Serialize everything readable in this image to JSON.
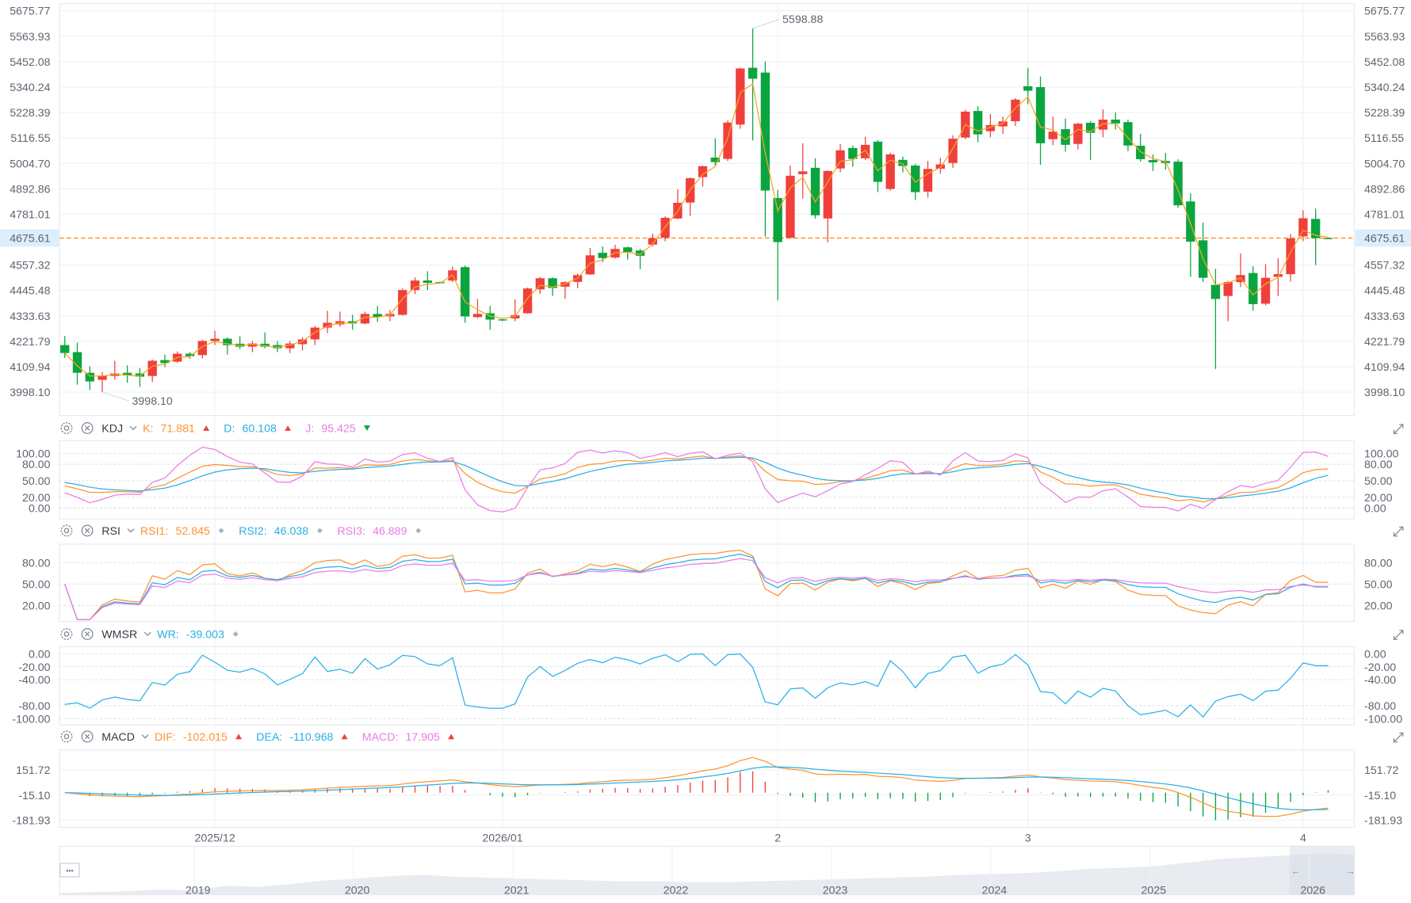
{
  "colors": {
    "up": "#f0403c",
    "down": "#0aa53f",
    "ma": "#f5a623",
    "last_price": "#ff8a1c",
    "k": "#ff9330",
    "d": "#28b0e6",
    "j": "#ea7be6",
    "wr": "#28b0e6",
    "neutral": "#a9b3c0",
    "axis_text": "#5f6470",
    "highlight_bg": "#dcedfb"
  },
  "main": {
    "type": "candlestick",
    "y_ticks": [
      "5675.77",
      "5563.93",
      "5452.08",
      "5340.24",
      "5228.39",
      "5116.55",
      "5004.70",
      "4892.86",
      "4781.01",
      "4557.32",
      "4445.48",
      "4333.63",
      "4221.79",
      "4109.94",
      "3998.10"
    ],
    "ylim": [
      3895,
      5707
    ],
    "last_price": "4675.61",
    "high_annotation": "5598.88",
    "low_annotation": "3998.10",
    "candles": [
      [
        4205,
        4245,
        4149,
        4170
      ],
      [
        4174,
        4216,
        4031,
        4083
      ],
      [
        4083,
        4111,
        4007,
        4045
      ],
      [
        4052,
        4087,
        3998.1,
        4069
      ],
      [
        4069,
        4136,
        4054,
        4080
      ],
      [
        4083,
        4115,
        4039,
        4071
      ],
      [
        4080,
        4104,
        4021,
        4066
      ],
      [
        4069,
        4141,
        4042,
        4136
      ],
      [
        4139,
        4163,
        4108,
        4126
      ],
      [
        4132,
        4177,
        4126,
        4167
      ],
      [
        4167,
        4174,
        4144,
        4156
      ],
      [
        4161,
        4228,
        4146,
        4223
      ],
      [
        4223,
        4268,
        4205,
        4233
      ],
      [
        4233,
        4239,
        4163,
        4205
      ],
      [
        4211,
        4244,
        4188,
        4198
      ],
      [
        4198,
        4223,
        4174,
        4212
      ],
      [
        4211,
        4261,
        4191,
        4198
      ],
      [
        4205,
        4223,
        4174,
        4191
      ],
      [
        4191,
        4223,
        4170,
        4212
      ],
      [
        4209,
        4240,
        4181,
        4230
      ],
      [
        4230,
        4289,
        4205,
        4282
      ],
      [
        4282,
        4356,
        4258,
        4303
      ],
      [
        4296,
        4352,
        4286,
        4310
      ],
      [
        4310,
        4338,
        4272,
        4300
      ],
      [
        4300,
        4352,
        4296,
        4342
      ],
      [
        4342,
        4377,
        4307,
        4328
      ],
      [
        4331,
        4359,
        4310,
        4342
      ],
      [
        4338,
        4454,
        4335,
        4447
      ],
      [
        4447,
        4503,
        4429,
        4489
      ],
      [
        4489,
        4530,
        4447,
        4479
      ],
      [
        4482,
        4484,
        4478,
        4480
      ],
      [
        4489,
        4551,
        4482,
        4534
      ],
      [
        4548,
        4555,
        4303,
        4331
      ],
      [
        4328,
        4408,
        4324,
        4342
      ],
      [
        4345,
        4377,
        4272,
        4317
      ],
      [
        4318,
        4322,
        4310,
        4317
      ],
      [
        4322,
        4406,
        4310,
        4336
      ],
      [
        4345,
        4458,
        4342,
        4454
      ],
      [
        4450,
        4505,
        4430,
        4499
      ],
      [
        4499,
        4503,
        4421,
        4456
      ],
      [
        4462,
        4485,
        4409,
        4482
      ],
      [
        4483,
        4520,
        4455,
        4513
      ],
      [
        4516,
        4632,
        4514,
        4600
      ],
      [
        4611,
        4639,
        4570,
        4588
      ],
      [
        4590,
        4646,
        4586,
        4628
      ],
      [
        4635,
        4639,
        4581,
        4615
      ],
      [
        4621,
        4628,
        4539,
        4598
      ],
      [
        4647,
        4695,
        4640,
        4675
      ],
      [
        4677,
        4771,
        4661,
        4765
      ],
      [
        4762,
        4891,
        4759,
        4831
      ],
      [
        4832,
        4943,
        4773,
        4939
      ],
      [
        4944,
        4994,
        4902,
        4992
      ],
      [
        5030,
        5115,
        4990,
        5010
      ],
      [
        5024,
        5193,
        5015,
        5184
      ],
      [
        5175,
        5425,
        5157,
        5422
      ],
      [
        5425,
        5598.88,
        5105,
        5377
      ],
      [
        5404,
        5453,
        4682,
        4885
      ],
      [
        4852,
        4887,
        4402,
        4658
      ],
      [
        4677,
        4995,
        4675,
        4950
      ],
      [
        4957,
        5093,
        4850,
        4969
      ],
      [
        4985,
        5027,
        4762,
        4776
      ],
      [
        4762,
        4974,
        4657,
        4971
      ],
      [
        4982,
        5090,
        4965,
        5062
      ],
      [
        5072,
        5083,
        4990,
        5024
      ],
      [
        5027,
        5121,
        5020,
        5086
      ],
      [
        5100,
        5107,
        4878,
        4923
      ],
      [
        4892,
        5051,
        4885,
        5044
      ],
      [
        5020,
        5034,
        4965,
        4993
      ],
      [
        4995,
        5002,
        4843,
        4878
      ],
      [
        4880,
        5015,
        4855,
        4980
      ],
      [
        4981,
        5029,
        4959,
        5000
      ],
      [
        5006,
        5128,
        4985,
        5113
      ],
      [
        5118,
        5241,
        5111,
        5232
      ],
      [
        5235,
        5256,
        5097,
        5132
      ],
      [
        5146,
        5222,
        5120,
        5173
      ],
      [
        5167,
        5210,
        5134,
        5189
      ],
      [
        5190,
        5291,
        5169,
        5285
      ],
      [
        5344,
        5425,
        5265,
        5324
      ],
      [
        5340,
        5387,
        4998,
        5093
      ],
      [
        5111,
        5210,
        5085,
        5144
      ],
      [
        5155,
        5202,
        5056,
        5086
      ],
      [
        5090,
        5183,
        5066,
        5179
      ],
      [
        5183,
        5190,
        5020,
        5139
      ],
      [
        5153,
        5242,
        5120,
        5197
      ],
      [
        5197,
        5228,
        5153,
        5180
      ],
      [
        5186,
        5197,
        5058,
        5083
      ],
      [
        5082,
        5134,
        5012,
        5023
      ],
      [
        5019,
        5043,
        4971,
        5009
      ],
      [
        5015,
        5050,
        4977,
        5006
      ],
      [
        5012,
        5022,
        4808,
        4820
      ],
      [
        4837,
        4872,
        4505,
        4660
      ],
      [
        4666,
        4744,
        4482,
        4501
      ],
      [
        4470,
        4540,
        4100,
        4408
      ],
      [
        4421,
        4488,
        4310,
        4482
      ],
      [
        4482,
        4608,
        4460,
        4513
      ],
      [
        4522,
        4552,
        4356,
        4385
      ],
      [
        4387,
        4561,
        4380,
        4501
      ],
      [
        4505,
        4587,
        4421,
        4517
      ],
      [
        4517,
        4694,
        4484,
        4674
      ],
      [
        4683,
        4798,
        4662,
        4763
      ],
      [
        4760,
        4805,
        4557,
        4675.61
      ],
      [
        4675.61,
        4675.61,
        4675.61,
        4675.61
      ]
    ]
  },
  "x_axis": {
    "labels": [
      {
        "text": "2025/12",
        "index": 12
      },
      {
        "text": "2026/01",
        "index": 35
      },
      {
        "text": "2",
        "index": 57
      },
      {
        "text": "3",
        "index": 77
      },
      {
        "text": "4",
        "index": 99
      }
    ]
  },
  "indicators": [
    {
      "name": "KDJ",
      "items": [
        {
          "label": "K:",
          "value": "71.881",
          "trend": "up",
          "color": "k"
        },
        {
          "label": "D:",
          "value": "60.108",
          "trend": "up",
          "color": "d"
        },
        {
          "label": "J:",
          "value": "95.425",
          "trend": "down",
          "color": "j"
        }
      ],
      "y_ticks": [
        "100.00",
        "80.00",
        "50.00",
        "20.00",
        "0.00"
      ],
      "ylim": [
        -19.7,
        123
      ]
    },
    {
      "name": "RSI",
      "items": [
        {
          "label": "RSI1:",
          "value": "52.845",
          "trend": "flat",
          "color": "k"
        },
        {
          "label": "RSI2:",
          "value": "46.038",
          "trend": "flat",
          "color": "d"
        },
        {
          "label": "RSI3:",
          "value": "46.889",
          "trend": "flat",
          "color": "j"
        }
      ],
      "y_ticks": [
        "80.00",
        "50.00",
        "20.00"
      ],
      "ylim": [
        -2.5,
        106
      ]
    },
    {
      "name": "WMSR",
      "items": [
        {
          "label": "WR:",
          "value": "-39.003",
          "trend": "flat",
          "color": "wr"
        }
      ],
      "y_ticks": [
        "0.00",
        "-20.00",
        "-40.00",
        "-80.00",
        "-100.00"
      ],
      "ylim": [
        -109.7,
        11
      ]
    },
    {
      "name": "MACD",
      "items": [
        {
          "label": "DIF:",
          "value": "-102.015",
          "trend": "up",
          "color": "k"
        },
        {
          "label": "DEA:",
          "value": "-110.968",
          "trend": "up",
          "color": "d"
        },
        {
          "label": "MACD:",
          "value": "17.905",
          "trend": "up",
          "color": "j"
        }
      ],
      "y_ticks": [
        "151.72",
        "-15.10",
        "-181.93"
      ],
      "ylim": [
        -229.6,
        282.8
      ]
    }
  ],
  "navigator": {
    "more_label": "•••",
    "years": [
      "2019",
      "2020",
      "2021",
      "2022",
      "2023",
      "2024",
      "2025",
      "2026"
    ],
    "profile": [
      2500,
      2550,
      2600,
      2700,
      2650,
      2900,
      2850,
      3000,
      3200,
      3300,
      3450,
      3500,
      3400,
      3350,
      3300,
      3250,
      3200,
      3150,
      3150,
      3100,
      3100,
      3150,
      3200,
      3250,
      3300,
      3350,
      3400,
      3500,
      3550,
      3600,
      3700,
      3850,
      3900,
      4000,
      4200,
      4400,
      4500,
      4600,
      4700,
      4650
    ]
  },
  "arrows": {
    "left": "←",
    "right": "→"
  }
}
